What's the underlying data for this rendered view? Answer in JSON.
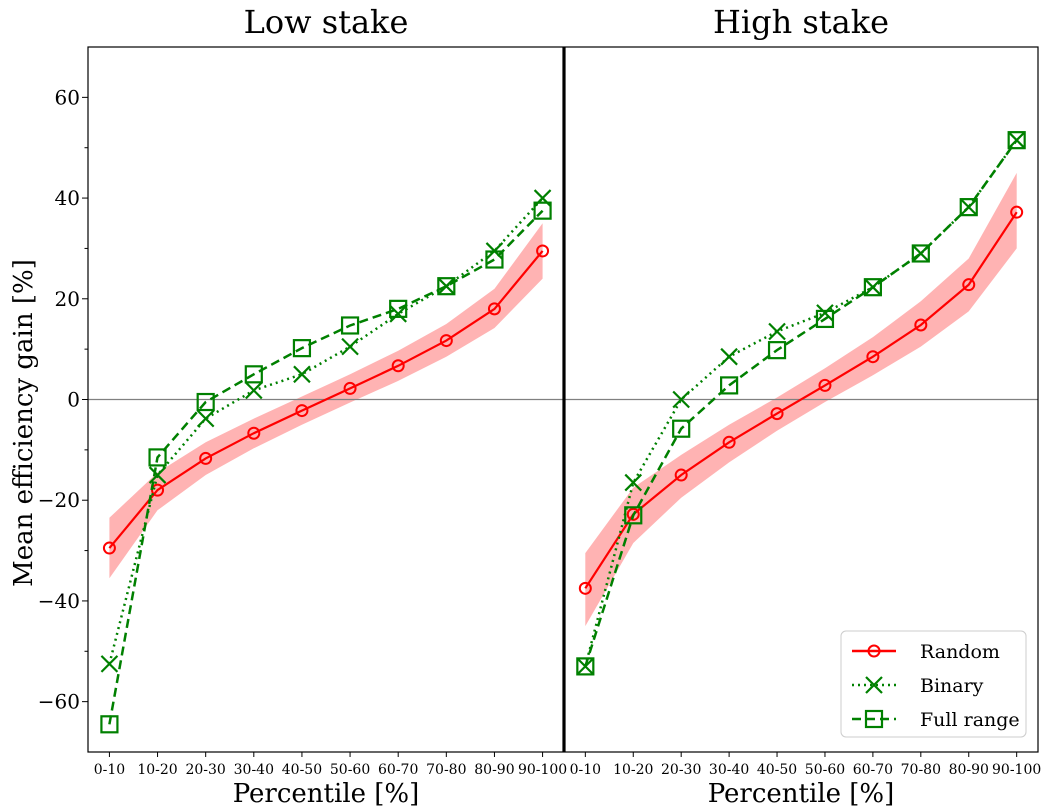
{
  "chart_data": {
    "type": "line",
    "ylabel": "Mean efficiency gain [%]",
    "xlabel": "Percentile [%]",
    "ylim": [
      -70,
      70
    ],
    "yticks": [
      -60,
      -40,
      -20,
      0,
      20,
      40,
      60
    ],
    "ytick_labels": [
      "−60",
      "−40",
      "−20",
      "0",
      "20",
      "40",
      "60"
    ],
    "categories": [
      "0-10",
      "10-20",
      "20-30",
      "30-40",
      "40-50",
      "50-60",
      "60-70",
      "70-80",
      "80-90",
      "90-100"
    ],
    "legend_position": "lower-right",
    "colors": {
      "random": "#ff0000",
      "band": "#ffb3b3",
      "green": "#008000",
      "zero_line": "#808080"
    },
    "panels": [
      {
        "title": "Low stake",
        "series": [
          {
            "name": "Random",
            "values": [
              -29.5,
              -18,
              -11.7,
              -6.7,
              -2.2,
              2.2,
              6.7,
              11.7,
              18,
              29.5
            ],
            "band_low": [
              -35.5,
              -22,
              -15,
              -9.7,
              -5,
              -0.6,
              3.7,
              8.5,
              14.2,
              24
            ],
            "band_high": [
              -23.5,
              -14.5,
              -8.5,
              -3.8,
              0.6,
              5,
              9.7,
              15,
              22,
              35
            ]
          },
          {
            "name": "Binary",
            "values": [
              -52.5,
              -15,
              -3.8,
              1.8,
              5,
              10.5,
              17,
              22.5,
              29.5,
              40
            ]
          },
          {
            "name": "Full range",
            "values": [
              -64.5,
              -11.5,
              -0.5,
              5,
              10.2,
              14.7,
              18,
              22.5,
              27.8,
              37.5
            ]
          }
        ]
      },
      {
        "title": "High stake",
        "series": [
          {
            "name": "Random",
            "values": [
              -37.5,
              -22.8,
              -15,
              -8.5,
              -2.8,
              2.8,
              8.5,
              14.8,
              22.8,
              37.2
            ],
            "band_low": [
              -45,
              -28.5,
              -19.5,
              -12.5,
              -6.2,
              -0.5,
              4.8,
              10.5,
              17.5,
              30
            ],
            "band_high": [
              -30.5,
              -17.5,
              -11,
              -5,
              0.4,
              6.2,
              12.4,
              19.5,
              28,
              45
            ]
          },
          {
            "name": "Binary",
            "values": [
              -53,
              -16.5,
              0,
              8.5,
              13.5,
              17.2,
              22.3,
              29,
              38.2,
              51.5
            ]
          },
          {
            "name": "Full range",
            "values": [
              -53,
              -23,
              -5.8,
              2.8,
              9.8,
              16,
              22.3,
              29,
              38.2,
              51.5
            ]
          }
        ]
      }
    ]
  }
}
